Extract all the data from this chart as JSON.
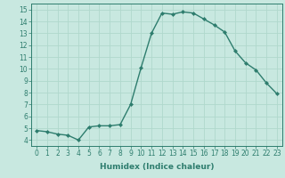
{
  "x": [
    0,
    1,
    2,
    3,
    4,
    5,
    6,
    7,
    8,
    9,
    10,
    11,
    12,
    13,
    14,
    15,
    16,
    17,
    18,
    19,
    20,
    21,
    22,
    23
  ],
  "y": [
    4.8,
    4.7,
    4.5,
    4.4,
    4.0,
    5.1,
    5.2,
    5.2,
    5.3,
    7.0,
    10.1,
    13.0,
    14.7,
    14.6,
    14.8,
    14.7,
    14.2,
    13.7,
    13.1,
    11.5,
    10.5,
    9.9,
    8.8,
    7.9
  ],
  "line_color": "#2e7d6e",
  "marker": "D",
  "marker_size": 2.0,
  "bg_color": "#c8e8e0",
  "grid_color": "#b0d8cc",
  "xlabel": "Humidex (Indice chaleur)",
  "xlim": [
    -0.5,
    23.5
  ],
  "ylim": [
    3.5,
    15.5
  ],
  "yticks": [
    4,
    5,
    6,
    7,
    8,
    9,
    10,
    11,
    12,
    13,
    14,
    15
  ],
  "xticks": [
    0,
    1,
    2,
    3,
    4,
    5,
    6,
    7,
    8,
    9,
    10,
    11,
    12,
    13,
    14,
    15,
    16,
    17,
    18,
    19,
    20,
    21,
    22,
    23
  ],
  "tick_label_fontsize": 5.5,
  "xlabel_fontsize": 6.5,
  "line_width": 1.0
}
